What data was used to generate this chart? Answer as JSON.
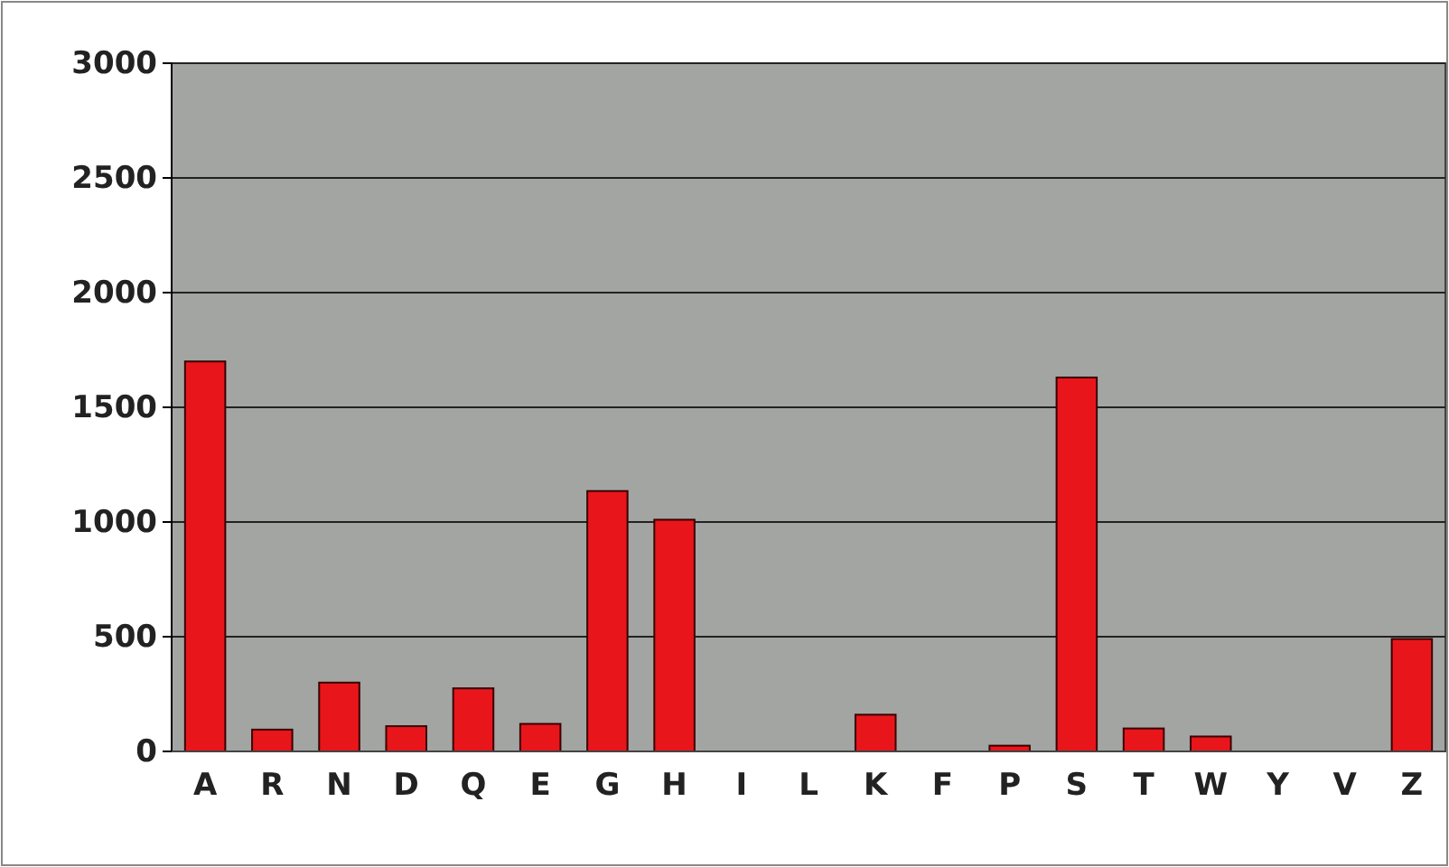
{
  "chart_data": {
    "type": "bar",
    "categories": [
      "A",
      "R",
      "N",
      "D",
      "Q",
      "E",
      "G",
      "H",
      "I",
      "L",
      "K",
      "F",
      "P",
      "S",
      "T",
      "W",
      "Y",
      "V",
      "Z"
    ],
    "values": [
      1700,
      95,
      300,
      110,
      275,
      120,
      1135,
      1010,
      0,
      0,
      160,
      0,
      25,
      1630,
      100,
      65,
      0,
      0,
      490
    ],
    "color": "#e8161b",
    "ylim": [
      0,
      3000
    ],
    "yticks": [
      0,
      500,
      1000,
      1500,
      2000,
      2500,
      3000
    ],
    "grid": "y"
  }
}
